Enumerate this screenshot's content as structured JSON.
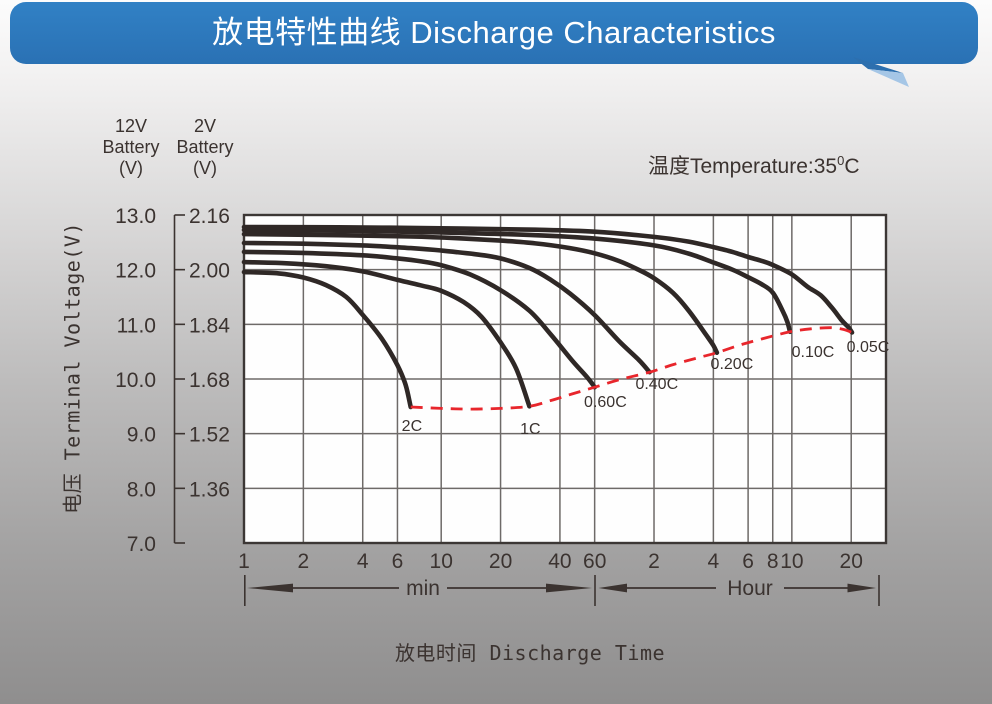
{
  "header": {
    "title": "放电特性曲线 Discharge Characteristics"
  },
  "temperature_note": {
    "prefix": "温度Temperature:35",
    "superscript": "0",
    "suffix": "C"
  },
  "y_axis": {
    "left_scale_header": {
      "line1": "12V",
      "line2": "Battery",
      "line3": "(V)"
    },
    "right_scale_header": {
      "line1": "2V",
      "line2": "Battery",
      "line3": "(V)"
    },
    "axis_title": "电压 Terminal Voltage(V)",
    "labels_12v": [
      "13.0",
      "12.0",
      "11.0",
      "10.0",
      "9.0",
      "8.0",
      "7.0"
    ],
    "labels_2v": [
      "2.16",
      "2.00",
      "1.84",
      "1.68",
      "1.52",
      "1.36"
    ]
  },
  "x_axis": {
    "axis_title": "放电时间 Discharge Time",
    "minute_tick_labels": [
      "1",
      "2",
      "4",
      "6",
      "10",
      "20",
      "40",
      "60"
    ],
    "hour_tick_labels": [
      "2",
      "4",
      "6",
      "8",
      "10",
      "20"
    ],
    "minute_section_label": "min",
    "hour_section_label": "Hour"
  },
  "chart_data": {
    "type": "line",
    "title": "放电特性曲线 Discharge Characteristics",
    "xlabel": "放电时间 Discharge Time",
    "ylabel": "电压 Terminal Voltage(V)",
    "x_scale": "log10, time in minutes (min section 1-60, hour section 1h-30h)",
    "x_range_minutes": [
      1,
      1860
    ],
    "y_range_2v": [
      1.2,
      2.16
    ],
    "y_range_12v": [
      7.0,
      13.0
    ],
    "y_gridline_values_2v": [
      2.16,
      2.0,
      1.84,
      1.68,
      1.52,
      1.36,
      1.2
    ],
    "x_gridline_minutes": [
      1,
      2,
      4,
      6,
      10,
      20,
      40,
      60,
      120,
      240,
      360,
      480,
      600,
      1200
    ],
    "temperature_c": 35,
    "grid": true,
    "series": [
      {
        "name": "2C",
        "points_t_min_v2v": [
          [
            1,
            1.993
          ],
          [
            1.5,
            1.989
          ],
          [
            2,
            1.977
          ],
          [
            2.6,
            1.955
          ],
          [
            3.3,
            1.92
          ],
          [
            4,
            1.868
          ],
          [
            5,
            1.798
          ],
          [
            6,
            1.72
          ],
          [
            6.6,
            1.663
          ],
          [
            7,
            1.598
          ]
        ],
        "label_at": [
          7.1,
          1.528
        ]
      },
      {
        "name": "1C",
        "points_t_min_v2v": [
          [
            1,
            2.022
          ],
          [
            1.6,
            2.019
          ],
          [
            2.6,
            2.01
          ],
          [
            4,
            1.995
          ],
          [
            6,
            1.97
          ],
          [
            8,
            1.953
          ],
          [
            10,
            1.938
          ],
          [
            13,
            1.905
          ],
          [
            16,
            1.862
          ],
          [
            20,
            1.787
          ],
          [
            24,
            1.71
          ],
          [
            28,
            1.6
          ]
        ],
        "label_at": [
          28.3,
          1.519
        ]
      },
      {
        "name": "0.60C",
        "points_t_min_v2v": [
          [
            1,
            2.052
          ],
          [
            2,
            2.049
          ],
          [
            4,
            2.042
          ],
          [
            6,
            2.033
          ],
          [
            8,
            2.024
          ],
          [
            10,
            2.013
          ],
          [
            14,
            1.986
          ],
          [
            20,
            1.94
          ],
          [
            28,
            1.88
          ],
          [
            36,
            1.81
          ],
          [
            46,
            1.735
          ],
          [
            55,
            1.685
          ],
          [
            60,
            1.656
          ]
        ],
        "label_at": [
          68,
          1.598
        ]
      },
      {
        "name": "0.40C",
        "points_t_min_v2v": [
          [
            1,
            2.078
          ],
          [
            2,
            2.076
          ],
          [
            4,
            2.071
          ],
          [
            7,
            2.063
          ],
          [
            10,
            2.056
          ],
          [
            15,
            2.045
          ],
          [
            20,
            2.033
          ],
          [
            28,
            2.005
          ],
          [
            36,
            1.97
          ],
          [
            45,
            1.93
          ],
          [
            60,
            1.867
          ],
          [
            80,
            1.79
          ],
          [
            100,
            1.737
          ],
          [
            114,
            1.7
          ]
        ],
        "label_at": [
          124,
          1.651
        ]
      },
      {
        "name": "0.20C",
        "points_t_min_v2v": [
          [
            1,
            2.104
          ],
          [
            3,
            2.101
          ],
          [
            7,
            2.097
          ],
          [
            12,
            2.092
          ],
          [
            20,
            2.085
          ],
          [
            30,
            2.077
          ],
          [
            45,
            2.063
          ],
          [
            60,
            2.048
          ],
          [
            80,
            2.025
          ],
          [
            100,
            2.0
          ],
          [
            120,
            1.975
          ],
          [
            150,
            1.932
          ],
          [
            180,
            1.88
          ],
          [
            220,
            1.81
          ],
          [
            240,
            1.778
          ],
          [
            250,
            1.757
          ]
        ],
        "label_at": [
          298,
          1.709
        ]
      },
      {
        "name": "0.10C",
        "points_t_min_v2v": [
          [
            1,
            2.116
          ],
          [
            3,
            2.114
          ],
          [
            10,
            2.109
          ],
          [
            30,
            2.101
          ],
          [
            60,
            2.091
          ],
          [
            120,
            2.071
          ],
          [
            180,
            2.047
          ],
          [
            240,
            2.021
          ],
          [
            300,
            2.0
          ],
          [
            360,
            1.978
          ],
          [
            420,
            1.958
          ],
          [
            480,
            1.933
          ],
          [
            540,
            1.878
          ],
          [
            570,
            1.846
          ],
          [
            587,
            1.818
          ]
        ],
        "label_at": [
          768,
          1.744
        ]
      },
      {
        "name": "0.05C",
        "points_t_min_v2v": [
          [
            1,
            2.125
          ],
          [
            3,
            2.124
          ],
          [
            10,
            2.121
          ],
          [
            30,
            2.117
          ],
          [
            60,
            2.111
          ],
          [
            120,
            2.096
          ],
          [
            180,
            2.082
          ],
          [
            240,
            2.066
          ],
          [
            300,
            2.052
          ],
          [
            360,
            2.037
          ],
          [
            420,
            2.026
          ],
          [
            480,
            2.014
          ],
          [
            600,
            1.986
          ],
          [
            720,
            1.95
          ],
          [
            840,
            1.925
          ],
          [
            960,
            1.888
          ],
          [
            1080,
            1.85
          ],
          [
            1160,
            1.832
          ],
          [
            1211,
            1.816
          ]
        ],
        "label_at": [
          1460,
          1.759
        ]
      }
    ],
    "envelope": {
      "name": "final-discharge-voltage-envelope",
      "style": "dashed-red",
      "points_t_min_v2v": [
        [
          7,
          1.598
        ],
        [
          10,
          1.594
        ],
        [
          14,
          1.592
        ],
        [
          20,
          1.594
        ],
        [
          28,
          1.6
        ],
        [
          36,
          1.617
        ],
        [
          46,
          1.636
        ],
        [
          60,
          1.656
        ],
        [
          80,
          1.678
        ],
        [
          114,
          1.7
        ],
        [
          150,
          1.722
        ],
        [
          200,
          1.742
        ],
        [
          250,
          1.757
        ],
        [
          330,
          1.78
        ],
        [
          440,
          1.8
        ],
        [
          587,
          1.818
        ],
        [
          750,
          1.827
        ],
        [
          950,
          1.83
        ],
        [
          1100,
          1.825
        ],
        [
          1211,
          1.816
        ]
      ]
    }
  },
  "colors": {
    "banner_blue": "#2c7abd",
    "banner_tail_dark": "#2d6fae",
    "banner_tail_light": "#a5c6e6",
    "curve": "#2f2826",
    "envelope_red": "#e8262c",
    "grid": "#6e6a68",
    "frame": "#3c3735",
    "text": "#3b3330",
    "plot_bg": "#fefefe"
  }
}
